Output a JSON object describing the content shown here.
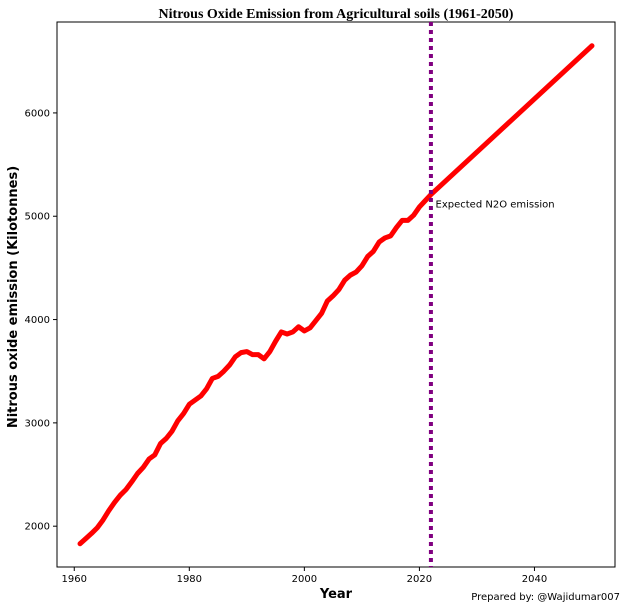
{
  "chart_data": {
    "type": "line",
    "title": "Nitrous Oxide Emission from  Agricultural soils (1961-2050)",
    "xlabel": "Year",
    "ylabel": "Nitrous oxide emission (Kilotonnes)",
    "xlim": [
      1957,
      2054
    ],
    "ylim": [
      1605,
      6880
    ],
    "xticks": [
      1960,
      1980,
      2000,
      2020,
      2040
    ],
    "yticks": [
      2000,
      3000,
      4000,
      5000,
      6000
    ],
    "grid": false,
    "colors": {
      "series": "#ff0000",
      "divider": "#800080"
    },
    "series": [
      {
        "x": [
          1961,
          1962,
          1963,
          1964,
          1965,
          1966,
          1967,
          1968,
          1969,
          1970,
          1971,
          1972,
          1973,
          1974,
          1975,
          1976,
          1977,
          1978,
          1979,
          1980,
          1981,
          1982,
          1983,
          1984,
          1985,
          1986,
          1987,
          1988,
          1989,
          1990,
          1991,
          1992,
          1993,
          1994,
          1995,
          1996,
          1997,
          1998,
          1999,
          2000,
          2001,
          2002,
          2003,
          2004,
          2005,
          2006,
          2007,
          2008,
          2009,
          2010,
          2011,
          2012,
          2013,
          2014,
          2015,
          2016,
          2017,
          2018,
          2019,
          2020,
          2021,
          2022,
          2050
        ],
        "values": [
          1830,
          1880,
          1930,
          1985,
          2060,
          2150,
          2230,
          2300,
          2355,
          2430,
          2510,
          2570,
          2650,
          2690,
          2800,
          2850,
          2920,
          3020,
          3090,
          3180,
          3220,
          3260,
          3330,
          3430,
          3450,
          3500,
          3560,
          3640,
          3680,
          3690,
          3660,
          3660,
          3620,
          3690,
          3790,
          3880,
          3860,
          3880,
          3930,
          3890,
          3920,
          3990,
          4060,
          4180,
          4230,
          4290,
          4380,
          4430,
          4460,
          4520,
          4610,
          4660,
          4750,
          4790,
          4810,
          4890,
          4960,
          4960,
          5010,
          5090,
          5150,
          5210,
          6650
        ]
      }
    ],
    "vline_x": 2022,
    "annotation": {
      "text": "Expected N2O emission",
      "x": 2022.8,
      "y": 5120
    }
  },
  "credit": "Prepared by: @Wajidumar007"
}
